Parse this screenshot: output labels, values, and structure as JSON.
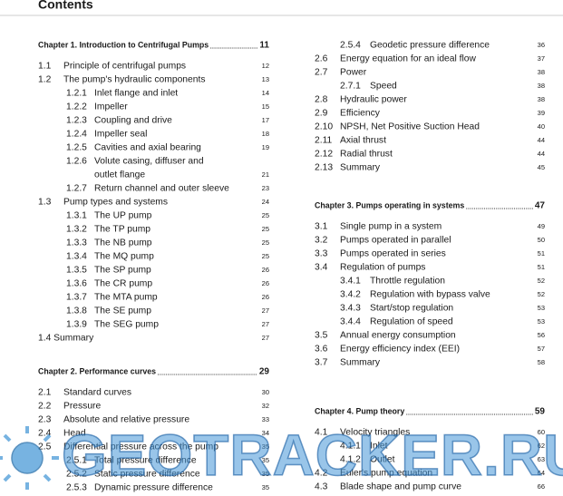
{
  "title": "Contents",
  "watermark": "GEOTRACKER.RU",
  "columns": [
    {
      "blocks": [
        {
          "heading": {
            "text": "Chapter 1. Introduction to Centrifugal Pumps",
            "page": 11
          },
          "items": [
            {
              "num": "1.1",
              "text": "Principle of centrifugal pumps",
              "page": 12
            },
            {
              "num": "1.2",
              "text": "The pump's hydraulic components",
              "page": 13
            },
            {
              "num": "1.2.1",
              "text": "Inlet flange and inlet",
              "page": 14
            },
            {
              "num": "1.2.2",
              "text": "Impeller",
              "page": 15
            },
            {
              "num": "1.2.3",
              "text": "Coupling and drive",
              "page": 17
            },
            {
              "num": "1.2.4",
              "text": "Impeller seal",
              "page": 18
            },
            {
              "num": "1.2.5",
              "text": "Cavities and axial bearing",
              "page": 19
            },
            {
              "num": "1.2.6",
              "text": [
                "Volute casing, diffuser and",
                "outlet flange"
              ],
              "page": 21
            },
            {
              "num": "1.2.7",
              "text": "Return channel and outer sleeve",
              "page": 23
            },
            {
              "num": "1.3",
              "text": "Pump types and systems",
              "page": 24
            },
            {
              "num": "1.3.1",
              "text": "The UP pump",
              "page": 25
            },
            {
              "num": "1.3.2",
              "text": "The TP pump",
              "page": 25
            },
            {
              "num": "1.3.3",
              "text": "The NB pump",
              "page": 25
            },
            {
              "num": "1.3.4",
              "text": "The MQ pump",
              "page": 25
            },
            {
              "num": "1.3.5",
              "text": "The SP pump",
              "page": 26
            },
            {
              "num": "1.3.6",
              "text": "The CR pump",
              "page": 26
            },
            {
              "num": "1.3.7",
              "text": "The MTA pump",
              "page": 26
            },
            {
              "num": "1.3.8",
              "text": "The SE pump",
              "page": 27
            },
            {
              "num": "1.3.9",
              "text": "The SEG pump",
              "page": 27
            },
            {
              "text": "1.4 Summary",
              "page": 27
            }
          ]
        },
        {
          "heading": {
            "text": "Chapter 2. Performance curves",
            "page": 29
          },
          "items": [
            {
              "num": "2.1",
              "text": "Standard curves",
              "page": 30
            },
            {
              "num": "2.2",
              "text": "Pressure",
              "page": 32
            },
            {
              "num": "2.3",
              "text": "Absolute and relative pressure",
              "page": 33
            },
            {
              "num": "2.4",
              "text": "Head",
              "page": 34
            },
            {
              "num": "2.5",
              "text": "Differential pressure across the pump",
              "page": 35
            },
            {
              "num": "2.5.1",
              "text": "Total pressure difference",
              "page": 35
            },
            {
              "num": "2.5.2",
              "text": "Static pressure difference",
              "page": 35
            },
            {
              "num": "2.5.3",
              "text": "Dynamic pressure difference",
              "page": 35
            }
          ]
        }
      ]
    },
    {
      "blocks": [
        {
          "items": [
            {
              "num": "2.5.4",
              "text": "Geodetic pressure difference",
              "page": 36
            },
            {
              "num": "2.6",
              "text": "Energy equation for an ideal flow",
              "page": 37
            },
            {
              "num": "2.7",
              "text": "Power",
              "page": 38
            },
            {
              "num": "2.7.1",
              "text": "Speed",
              "page": 38
            },
            {
              "num": "2.8",
              "text": "Hydraulic power",
              "page": 38
            },
            {
              "num": "2.9",
              "text": "Efficiency",
              "page": 39
            },
            {
              "num": "2.10",
              "text": "NPSH, Net Positive Suction Head",
              "page": 40
            },
            {
              "num": "2.11",
              "text": "Axial thrust",
              "page": 44
            },
            {
              "num": "2.12",
              "text": "Radial thrust",
              "page": 44
            },
            {
              "num": "2.13",
              "text": "Summary",
              "page": 45
            }
          ]
        },
        {
          "heading": {
            "text": "Chapter 3. Pumps operating in systems",
            "page": 47
          },
          "items": [
            {
              "num": "3.1",
              "text": "Single pump in a system",
              "page": 49
            },
            {
              "num": "3.2",
              "text": "Pumps operated in parallel",
              "page": 50
            },
            {
              "num": "3.3",
              "text": "Pumps operated in series",
              "page": 51
            },
            {
              "num": "3.4",
              "text": "Regulation of pumps",
              "page": 51
            },
            {
              "num": "3.4.1",
              "text": "Throttle regulation",
              "page": 52
            },
            {
              "num": "3.4.2",
              "text": "Regulation with bypass valve",
              "page": 52
            },
            {
              "num": "3.4.3",
              "text": "Start/stop regulation",
              "page": 53
            },
            {
              "num": "3.4.4",
              "text": "Regulation of speed",
              "page": 53
            },
            {
              "num": "3.5",
              "text": "Annual energy consumption",
              "page": 56
            },
            {
              "num": "3.6",
              "text": "Energy efficiency index (EEI)",
              "page": 57
            },
            {
              "num": "3.7",
              "text": "Summary",
              "page": 58
            }
          ]
        },
        {
          "heading": {
            "text": "Chapter 4. Pump theory",
            "page": 59
          },
          "items": [
            {
              "num": "4.1",
              "text": "Velocity triangles",
              "page": 60
            },
            {
              "num": "4.1.1",
              "text": "Inlet",
              "page": 62
            },
            {
              "num": "4.1.2",
              "text": "Outlet",
              "page": 63
            },
            {
              "num": "4.2",
              "text": "Euler's pump equation",
              "page": 64
            },
            {
              "num": "4.3",
              "text": "Blade shape and pump curve",
              "page": 66
            }
          ]
        }
      ]
    }
  ]
}
